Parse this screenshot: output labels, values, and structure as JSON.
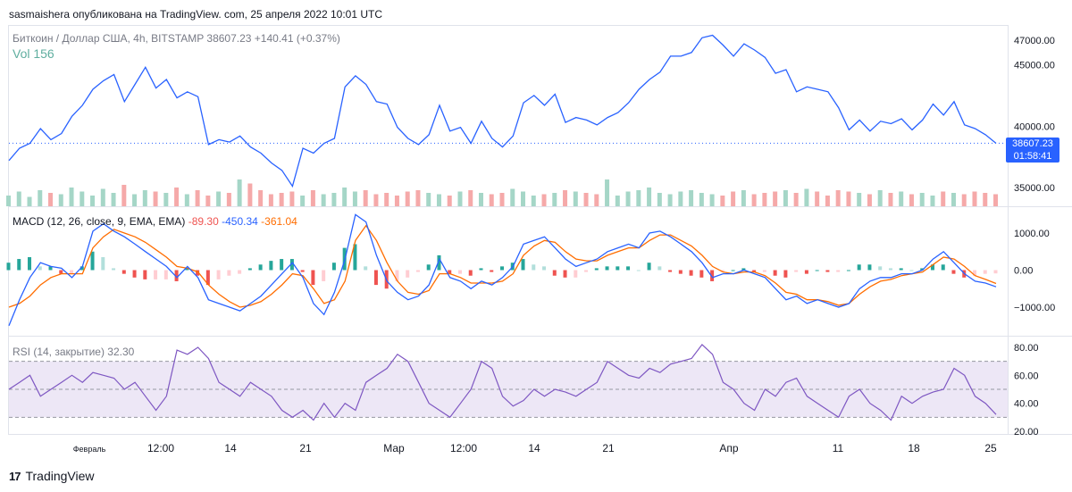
{
  "header": {
    "published_text": "sasmaishera опубликована на TradingView. com, 25 апреля 2022 10:01 UTC"
  },
  "legends": {
    "price": "Биткоин / Доллар США, 4h, BITSTAMP 38607.23 +140.41 (+0.37%)",
    "volume": "Vol 156",
    "macd_title": "MACD (12, 26, close, 9, EMA, EMA)",
    "macd_hist": "-89.30",
    "macd_value": "-450.34",
    "macd_signal": "-361.04",
    "rsi": "RSI (14, закрытие) 32.30"
  },
  "price_tag": {
    "price": "38607.23",
    "countdown": "01:58:41"
  },
  "brand": {
    "name": "TradingView",
    "logo": "tradingview-logo"
  },
  "colors": {
    "price_line": "#2962ff",
    "macd_line": "#2962ff",
    "signal_line": "#ff6d00",
    "rsi_line": "#7e57c2",
    "rsi_band": "#ede7f6",
    "hist_up": "#26a69a",
    "hist_down": "#ef5350",
    "vol_up": "#a5d6c7",
    "vol_down": "#f5a9a9"
  },
  "chart_data": [
    {
      "type": "line",
      "title": "Биткоин / Доллар США, 4h, BITSTAMP",
      "series": [
        {
          "name": "BTCUSD",
          "values": [
            37200,
            38200,
            38600,
            39800,
            38900,
            39400,
            40800,
            41700,
            43000,
            43700,
            44200,
            42000,
            43400,
            44800,
            43100,
            43800,
            42300,
            42800,
            42400,
            38500,
            38900,
            38700,
            39200,
            38300,
            37800,
            37000,
            36400,
            35100,
            38200,
            37800,
            38600,
            39000,
            43200,
            44100,
            43400,
            42000,
            41800,
            39900,
            39000,
            38500,
            39300,
            41700,
            39600,
            39900,
            38600,
            40400,
            39000,
            38300,
            39200,
            41900,
            42500,
            41700,
            42600,
            40300,
            40700,
            40500,
            40100,
            40700,
            41100,
            41900,
            43000,
            43800,
            44400,
            45700,
            45700,
            46000,
            47200,
            47400,
            46600,
            45700,
            46700,
            46200,
            45600,
            44300,
            44600,
            42800,
            43200,
            43000,
            42800,
            41500,
            39700,
            40500,
            39600,
            40400,
            40200,
            40600,
            39700,
            40500,
            41800,
            40900,
            42000,
            40100,
            39800,
            39300,
            38600
          ]
        }
      ],
      "x_tick_labels": [
        "Февраль",
        "12:00",
        "14",
        "21",
        "Мар",
        "12:00",
        "14",
        "21",
        "Апр",
        "11",
        "18",
        "25"
      ],
      "y_tick_labels": [
        "47000.00",
        "45000.00",
        "40000.00",
        "35000.00"
      ],
      "current_price": 38607.23
    },
    {
      "type": "bar",
      "title": "Vol",
      "values": [
        40,
        55,
        35,
        60,
        50,
        45,
        70,
        55,
        40,
        65,
        50,
        80,
        45,
        60,
        55,
        50,
        70,
        45,
        60,
        40,
        55,
        50,
        100,
        85,
        60,
        45,
        50,
        55,
        40,
        60,
        45,
        50,
        70,
        55,
        60,
        45,
        50,
        40,
        55,
        60,
        50,
        45,
        40,
        55,
        60,
        50,
        45,
        50,
        65,
        55,
        40,
        45,
        50,
        60,
        55,
        50,
        45,
        100,
        40,
        55,
        60,
        70,
        50,
        45,
        55,
        60,
        50,
        45,
        40,
        55,
        60,
        45,
        50,
        55,
        60,
        50,
        65,
        55,
        40,
        60,
        55,
        50,
        45,
        60,
        50,
        55,
        45,
        50,
        40,
        55,
        50,
        45,
        55,
        50,
        45
      ]
    },
    {
      "type": "line",
      "title": "MACD (12, 26, close, 9, EMA, EMA)",
      "series": [
        {
          "name": "MACD",
          "values": [
            -1500,
            -800,
            -200,
            200,
            100,
            50,
            -200,
            100,
            1050,
            1250,
            1050,
            900,
            700,
            500,
            300,
            100,
            -200,
            100,
            -200,
            -800,
            -900,
            -1000,
            -1100,
            -900,
            -700,
            -400,
            -100,
            200,
            -200,
            -900,
            -1200,
            -600,
            300,
            1500,
            1300,
            400,
            -300,
            -600,
            -800,
            -700,
            -400,
            300,
            -200,
            -300,
            -500,
            -300,
            -400,
            -200,
            100,
            700,
            800,
            900,
            600,
            300,
            100,
            200,
            300,
            500,
            600,
            700,
            600,
            1000,
            1050,
            900,
            700,
            500,
            200,
            -200,
            -100,
            -100,
            0,
            -100,
            -200,
            -500,
            -800,
            -700,
            -900,
            -800,
            -900,
            -1000,
            -900,
            -500,
            -300,
            -200,
            -200,
            -100,
            -100,
            0,
            300,
            500,
            200,
            -100,
            -300,
            -350,
            -450
          ]
        },
        {
          "name": "Signal",
          "values": [
            -1000,
            -900,
            -700,
            -400,
            -200,
            -100,
            -100,
            -100,
            600,
            900,
            1100,
            1000,
            900,
            750,
            550,
            350,
            100,
            50,
            -50,
            -400,
            -650,
            -850,
            -1000,
            -950,
            -850,
            -650,
            -400,
            -100,
            -150,
            -500,
            -900,
            -800,
            -300,
            800,
            1200,
            800,
            200,
            -300,
            -600,
            -650,
            -550,
            -100,
            -100,
            -200,
            -350,
            -350,
            -350,
            -300,
            -100,
            400,
            650,
            800,
            750,
            500,
            300,
            250,
            250,
            400,
            500,
            600,
            600,
            800,
            950,
            950,
            800,
            650,
            400,
            100,
            -50,
            -100,
            -50,
            -50,
            -150,
            -350,
            -600,
            -650,
            -800,
            -800,
            -850,
            -950,
            -900,
            -650,
            -450,
            -300,
            -250,
            -150,
            -100,
            -50,
            150,
            350,
            300,
            100,
            -150,
            -250,
            -361
          ]
        }
      ],
      "hist_values": [
        200,
        300,
        350,
        100,
        100,
        -100,
        -100,
        100,
        500,
        350,
        50,
        -100,
        -200,
        -250,
        -250,
        -250,
        -300,
        50,
        -150,
        -400,
        -250,
        -150,
        -100,
        50,
        150,
        250,
        300,
        300,
        -50,
        -400,
        -300,
        200,
        600,
        700,
        100,
        -400,
        -500,
        -300,
        -200,
        -50,
        150,
        400,
        -100,
        -100,
        -150,
        50,
        -50,
        100,
        200,
        300,
        150,
        100,
        -150,
        -200,
        -200,
        -50,
        50,
        100,
        100,
        100,
        0,
        200,
        100,
        -50,
        -100,
        -150,
        -200,
        -300,
        -50,
        0,
        50,
        -50,
        -50,
        -150,
        -200,
        -50,
        -100,
        0,
        -50,
        -50,
        0,
        150,
        150,
        100,
        50,
        50,
        0,
        50,
        150,
        150,
        -100,
        -200,
        -150,
        -100,
        -89
      ],
      "y_tick_labels": [
        "1000.00",
        "0.00",
        "−1000.00"
      ]
    },
    {
      "type": "line",
      "title": "RSI (14, закрытие)",
      "series": [
        {
          "name": "RSI",
          "values": [
            50,
            55,
            60,
            45,
            50,
            55,
            60,
            55,
            62,
            60,
            58,
            50,
            55,
            45,
            35,
            45,
            78,
            75,
            80,
            72,
            55,
            50,
            45,
            55,
            50,
            45,
            35,
            30,
            35,
            28,
            40,
            30,
            40,
            35,
            55,
            60,
            65,
            75,
            70,
            55,
            40,
            35,
            30,
            40,
            50,
            70,
            65,
            45,
            38,
            42,
            50,
            45,
            50,
            48,
            45,
            50,
            55,
            70,
            65,
            60,
            58,
            65,
            62,
            68,
            70,
            72,
            82,
            75,
            55,
            50,
            40,
            35,
            50,
            45,
            55,
            58,
            45,
            40,
            35,
            30,
            45,
            50,
            40,
            35,
            28,
            45,
            40,
            45,
            48,
            50,
            65,
            60,
            45,
            40,
            32
          ]
        }
      ],
      "bands": [
        30,
        50,
        70
      ],
      "y_tick_labels": [
        "80.00",
        "60.00",
        "40.00",
        "20.00"
      ]
    }
  ]
}
